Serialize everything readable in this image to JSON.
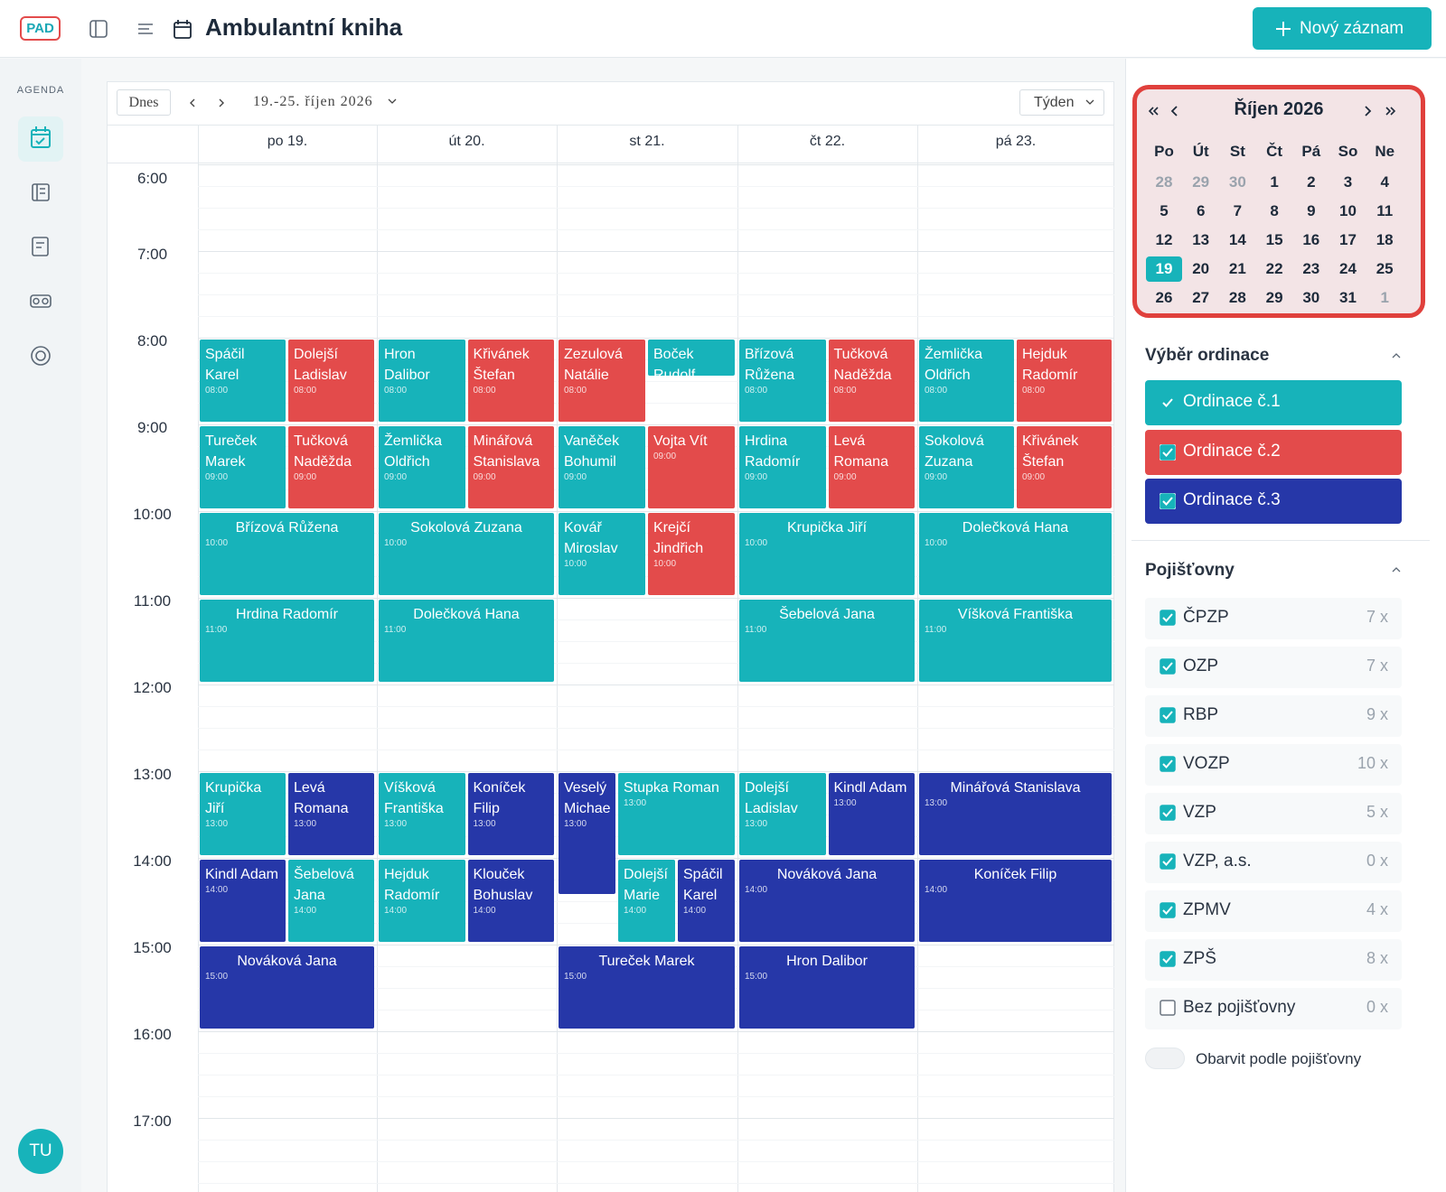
{
  "header": {
    "logo": "PAD",
    "title": "Ambulantní kniha",
    "new_button": "Nový záznam"
  },
  "sidebar": {
    "section": "AGENDA",
    "avatar": "TU"
  },
  "toolbar": {
    "today": "Dnes",
    "range": "19.-25. říjen 2026",
    "view": "Týden"
  },
  "calendar": {
    "days": [
      {
        "label": "po 19.",
        "events": [
          {
            "name": "Spáčil Karel",
            "time": "08:00",
            "color": "#17b3ba"
          },
          {
            "name": "Dolejší Ladislav",
            "time": "08:00",
            "color": "#e34b4b"
          },
          {
            "name": "Tureček Marek",
            "time": "09:00",
            "color": "#17b3ba"
          },
          {
            "name": "Tučková Naděžda",
            "time": "09:00",
            "color": "#e34b4b"
          },
          {
            "name": "Břízová Růžena",
            "time": "10:00",
            "color": "#17b3ba"
          },
          {
            "name": "Hrdina Radomír",
            "time": "11:00",
            "color": "#17b3ba"
          },
          {
            "name": "Krupička Jiří",
            "time": "13:00",
            "color": "#17b3ba"
          },
          {
            "name": "Levá Romana",
            "time": "13:00",
            "color": "#2637a8"
          },
          {
            "name": "Kindl Adam",
            "time": "14:00",
            "color": "#2637a8"
          },
          {
            "name": "Šebelová Jana",
            "time": "14:00",
            "color": "#17b3ba"
          },
          {
            "name": "Nováková Jana",
            "time": "15:00",
            "color": "#2637a8"
          }
        ]
      },
      {
        "label": "út 20.",
        "events": [
          {
            "name": "Hron Dalibor",
            "time": "08:00",
            "color": "#17b3ba"
          },
          {
            "name": "Křivánek Štefan",
            "time": "08:00",
            "color": "#e34b4b"
          },
          {
            "name": "Žemlička Oldřich",
            "time": "09:00",
            "color": "#17b3ba"
          },
          {
            "name": "Minářová Stanislava",
            "time": "09:00",
            "color": "#e34b4b"
          },
          {
            "name": "Sokolová Zuzana",
            "time": "10:00",
            "color": "#17b3ba"
          },
          {
            "name": "Dolečková Hana",
            "time": "11:00",
            "color": "#17b3ba"
          },
          {
            "name": "Víšková Františka",
            "time": "13:00",
            "color": "#17b3ba"
          },
          {
            "name": "Koníček Filip",
            "time": "13:00",
            "color": "#2637a8"
          },
          {
            "name": "Hejduk Radomír",
            "time": "14:00",
            "color": "#17b3ba"
          },
          {
            "name": "Klouček Bohuslav",
            "time": "14:00",
            "color": "#2637a8"
          }
        ]
      },
      {
        "label": "st 21.",
        "events": [
          {
            "name": "Zezulová Natálie",
            "time": "08:00",
            "color": "#e34b4b"
          },
          {
            "name": "Boček Rudolf",
            "color": "#17b3ba"
          },
          {
            "name": "Vaněček Bohumil",
            "time": "09:00",
            "color": "#17b3ba"
          },
          {
            "name": "Vojta Vít",
            "time": "09:00",
            "color": "#e34b4b"
          },
          {
            "name": "Kovář Miroslav",
            "time": "10:00",
            "color": "#17b3ba"
          },
          {
            "name": "Krejčí Jindřich",
            "time": "10:00",
            "color": "#e34b4b"
          },
          {
            "name": "Veselý Michae",
            "time": "13:00",
            "color": "#2637a8"
          },
          {
            "name": "Stupka Roman",
            "time": "13:00",
            "color": "#17b3ba"
          },
          {
            "name": "Dolejší Marie",
            "time": "14:00",
            "color": "#17b3ba"
          },
          {
            "name": "Spáčil Karel",
            "time": "14:00",
            "color": "#2637a8"
          },
          {
            "name": "Tureček Marek",
            "time": "15:00",
            "color": "#2637a8"
          }
        ]
      },
      {
        "label": "čt 22.",
        "events": [
          {
            "name": "Břízová Růžena",
            "time": "08:00",
            "color": "#17b3ba"
          },
          {
            "name": "Tučková Naděžda",
            "time": "08:00",
            "color": "#e34b4b"
          },
          {
            "name": "Hrdina Radomír",
            "time": "09:00",
            "color": "#17b3ba"
          },
          {
            "name": "Levá Romana",
            "time": "09:00",
            "color": "#e34b4b"
          },
          {
            "name": "Krupička Jiří",
            "time": "10:00",
            "color": "#17b3ba"
          },
          {
            "name": "Šebelová Jana",
            "time": "11:00",
            "color": "#17b3ba"
          },
          {
            "name": "Dolejší Ladislav",
            "time": "13:00",
            "color": "#17b3ba"
          },
          {
            "name": "Kindl Adam",
            "time": "13:00",
            "color": "#2637a8"
          },
          {
            "name": "Nováková Jana",
            "time": "14:00",
            "color": "#2637a8"
          },
          {
            "name": "Hron Dalibor",
            "time": "15:00",
            "color": "#2637a8"
          }
        ]
      },
      {
        "label": "pá 23.",
        "events": [
          {
            "name": "Žemlička Oldřich",
            "time": "08:00",
            "color": "#17b3ba"
          },
          {
            "name": "Hejduk Radomír",
            "time": "08:00",
            "color": "#e34b4b"
          },
          {
            "name": "Sokolová Zuzana",
            "time": "09:00",
            "color": "#17b3ba"
          },
          {
            "name": "Křivánek Štefan",
            "time": "09:00",
            "color": "#e34b4b"
          },
          {
            "name": "Dolečková Hana",
            "time": "10:00",
            "color": "#17b3ba"
          },
          {
            "name": "Víšková Františka",
            "time": "11:00",
            "color": "#17b3ba"
          },
          {
            "name": "Minářová Stanislava",
            "time": "13:00",
            "color": "#2637a8"
          },
          {
            "name": "Koníček Filip",
            "time": "14:00",
            "color": "#2637a8"
          }
        ]
      }
    ],
    "hours": [
      "6:00",
      "7:00",
      "8:00",
      "9:00",
      "10:00",
      "11:00",
      "12:00",
      "13:00",
      "14:00",
      "15:00",
      "16:00",
      "17:00"
    ]
  },
  "mini_calendar": {
    "month": "Říjen 2026",
    "weekdays": [
      "Po",
      "Út",
      "St",
      "Čt",
      "Pá",
      "So",
      "Ne"
    ],
    "dates": [
      28,
      29,
      30,
      1,
      2,
      3,
      4,
      5,
      6,
      7,
      8,
      9,
      10,
      11,
      12,
      13,
      14,
      15,
      16,
      17,
      18,
      19,
      20,
      21,
      22,
      23,
      24,
      25,
      26,
      27,
      28,
      29,
      30,
      31,
      1
    ]
  },
  "ordinace": {
    "title": "Výběr ordinace",
    "items": [
      {
        "name": "Ordinace č.1",
        "color": "#17b3ba",
        "checked": true
      },
      {
        "name": "Ordinace č.2",
        "color": "#e34b4b",
        "checked": true
      },
      {
        "name": "Ordinace č.3",
        "color": "#2637a8",
        "checked": true
      }
    ]
  },
  "pojistovny": {
    "title": "Pojišťovny",
    "items": [
      {
        "name": "ČPZP",
        "count": "7 x",
        "checked": true
      },
      {
        "name": "OZP",
        "count": "7 x",
        "checked": true
      },
      {
        "name": "RBP",
        "count": "9 x",
        "checked": true
      },
      {
        "name": "VOZP",
        "count": "10 x",
        "checked": true
      },
      {
        "name": "VZP",
        "count": "5 x",
        "checked": true
      },
      {
        "name": "VZP, a.s.",
        "count": "0 x",
        "checked": true
      },
      {
        "name": "ZPMV",
        "count": "4 x",
        "checked": true
      },
      {
        "name": "ZPŠ",
        "count": "8 x",
        "checked": true
      },
      {
        "name": "Bez pojišťovny",
        "count": "0 x",
        "checked": false
      }
    ],
    "toggle": "Obarvit podle pojišťovny"
  }
}
